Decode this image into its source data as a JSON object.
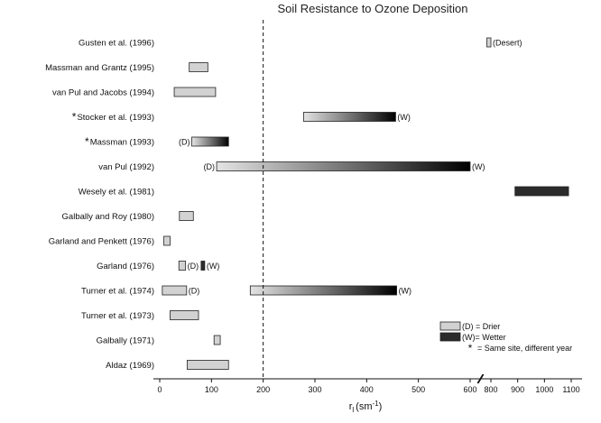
{
  "chart_data": {
    "type": "bar",
    "orientation": "horizontal-range",
    "title": "Soil Resistance to Ozone Deposition",
    "xlabel": "r",
    "xlabel_subscript": "l",
    "xlabel_units": "(sm",
    "xlabel_units_sup": "-1",
    "xlabel_units_close": ")",
    "xlim": [
      0,
      1100
    ],
    "axis_break": [
      600,
      800
    ],
    "x_ticks": [
      "0",
      "100",
      "200",
      "300",
      "400",
      "500",
      "600",
      "800",
      "900",
      "1000",
      "1100"
    ],
    "x_tick_values": [
      0,
      100,
      200,
      300,
      400,
      500,
      600,
      800,
      900,
      1000,
      1100
    ],
    "reference_line_x": 200,
    "grid": false,
    "legend_position": "bottom-right",
    "legend": [
      {
        "style": "light",
        "label": "(D) = Drier"
      },
      {
        "style": "dark",
        "label": "(W)= Wetter"
      },
      {
        "style": "star",
        "symbol": "*",
        "label": "= Same site, different year"
      }
    ],
    "studies": [
      {
        "label": "Gusten et al. (1996)",
        "starred": false,
        "bars": [
          {
            "from": 785,
            "to": 800,
            "style": "light",
            "note": "(Desert)"
          }
        ]
      },
      {
        "label": "Massman and Grantz (1995)",
        "starred": false,
        "bars": [
          {
            "from": 57,
            "to": 93,
            "style": "light"
          }
        ]
      },
      {
        "label": "van Pul and Jacobs (1994)",
        "starred": false,
        "bars": [
          {
            "from": 28,
            "to": 108,
            "style": "light"
          }
        ]
      },
      {
        "label": "Stocker et al. (1993)",
        "starred": true,
        "bars": [
          {
            "from": 278,
            "to": 456,
            "style": "gradient",
            "note_after": "(W)"
          }
        ]
      },
      {
        "label": "Massman (1993)",
        "starred": true,
        "bars": [
          {
            "from": 62,
            "to": 133,
            "style": "gradient",
            "note_before": "(D)"
          }
        ]
      },
      {
        "label": "van Pul (1992)",
        "starred": false,
        "bars": [
          {
            "from": 110,
            "to": 600,
            "style": "gradient",
            "note_before": "(D)",
            "note_after": "(W)"
          }
        ]
      },
      {
        "label": "Wesely et al. (1981)",
        "starred": false,
        "bars": [
          {
            "from": 890,
            "to": 1090,
            "style": "dark"
          }
        ]
      },
      {
        "label": "Galbally and Roy (1980)",
        "starred": false,
        "bars": [
          {
            "from": 38,
            "to": 65,
            "style": "light"
          }
        ]
      },
      {
        "label": "Garland and Penkett (1976)",
        "starred": false,
        "bars": [
          {
            "from": 8,
            "to": 20,
            "style": "light"
          }
        ]
      },
      {
        "label": "Garland (1976)",
        "starred": false,
        "bars": [
          {
            "from": 37,
            "to": 50,
            "style": "light",
            "note_after": "(D)"
          },
          {
            "from": 80,
            "to": 87,
            "style": "dark",
            "note_after": "(W)"
          }
        ]
      },
      {
        "label": "Turner et al. (1974)",
        "starred": false,
        "bars": [
          {
            "from": 5,
            "to": 52,
            "style": "light",
            "note_after": "(D)"
          },
          {
            "from": 175,
            "to": 458,
            "style": "gradient",
            "note_after": "(W)"
          }
        ]
      },
      {
        "label": "Turner et al. (1973)",
        "starred": false,
        "bars": [
          {
            "from": 20,
            "to": 75,
            "style": "light"
          }
        ]
      },
      {
        "label": "Galbally (1971)",
        "starred": false,
        "bars": [
          {
            "from": 105,
            "to": 117,
            "style": "light"
          }
        ]
      },
      {
        "label": "Aldaz (1969)",
        "starred": false,
        "bars": [
          {
            "from": 53,
            "to": 133,
            "style": "light"
          }
        ]
      }
    ]
  }
}
